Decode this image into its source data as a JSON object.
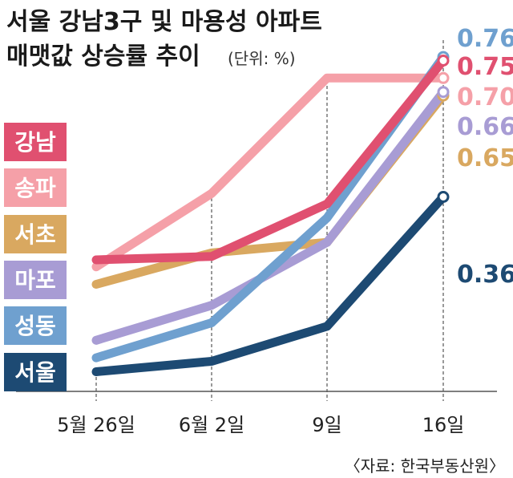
{
  "chart_data": {
    "type": "line",
    "title": "서울 강남3구 및 마용성 아파트",
    "subtitle": "매맷값 상승률 추이",
    "unit": "(단위: %)",
    "categories": [
      "5월 26일",
      "6월 2일",
      "9일",
      "16일"
    ],
    "source": "〈자료: 한국부동산원〉",
    "grid": "vertical dashed",
    "legend_position": "left",
    "series": [
      {
        "name": "강남",
        "values": [
          0.18,
          0.19,
          0.34,
          0.75
        ],
        "color": "#e05070",
        "end_label": "0.75"
      },
      {
        "name": "송파",
        "values": [
          0.16,
          0.37,
          0.7,
          0.7
        ],
        "color": "#f5a0a8",
        "end_label": "0.70"
      },
      {
        "name": "서초",
        "values": [
          0.11,
          0.2,
          0.23,
          0.65
        ],
        "color": "#d9a860",
        "end_label": "0.65"
      },
      {
        "name": "마포",
        "values": [
          -0.05,
          0.05,
          0.23,
          0.66
        ],
        "color": "#a89cd4",
        "end_label": "0.66"
      },
      {
        "name": "성동",
        "values": [
          -0.1,
          0.0,
          0.3,
          0.76
        ],
        "color": "#6fa0cf",
        "end_label": "0.76"
      },
      {
        "name": "서울",
        "values": [
          -0.14,
          -0.11,
          -0.01,
          0.36
        ],
        "color": "#1d4a73",
        "end_label": "0.36"
      }
    ]
  }
}
